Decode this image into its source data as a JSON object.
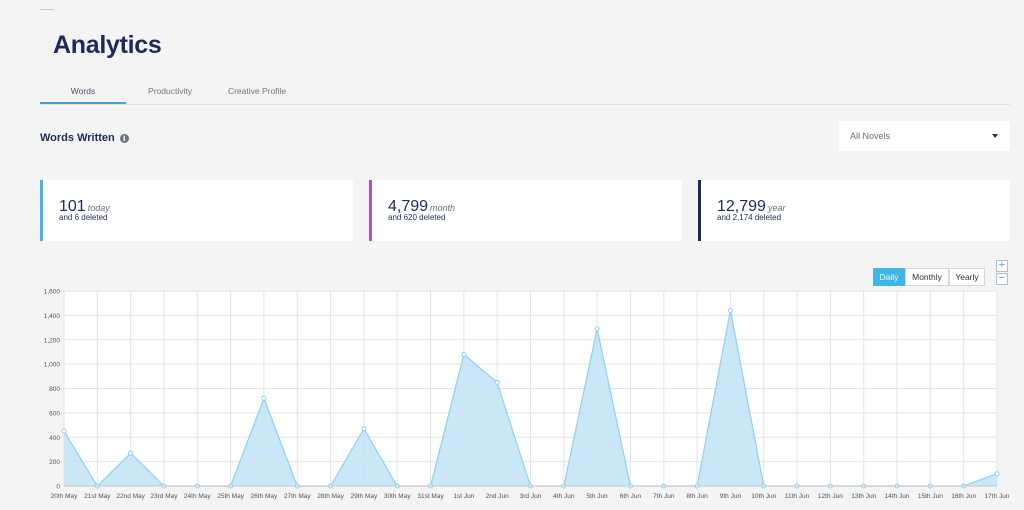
{
  "header": {
    "title": "Analytics"
  },
  "tabs": [
    {
      "label": "Words",
      "active": true
    },
    {
      "label": "Productivity",
      "active": false
    },
    {
      "label": "Creative Profile",
      "active": false
    }
  ],
  "section": {
    "title": "Words Written",
    "info_icon": "info-icon"
  },
  "novel_select": {
    "value": "All Novels"
  },
  "cards": [
    {
      "value": "101",
      "unit": "today",
      "deleted": "and 6 deleted",
      "accent": "#3fb6e8"
    },
    {
      "value": "4,799",
      "unit": "month",
      "deleted": "and 620 deleted",
      "accent": "#a855c8"
    },
    {
      "value": "12,799",
      "unit": "year",
      "deleted": "and 2,174 deleted",
      "accent": "#1e2a5a"
    }
  ],
  "zoom": {
    "in": "+",
    "out": "−"
  },
  "period_buttons": [
    {
      "label": "Daily",
      "active": true
    },
    {
      "label": "Monthly",
      "active": false
    },
    {
      "label": "Yearly",
      "active": false
    }
  ],
  "chart_data": {
    "type": "area",
    "categories": [
      "20th May",
      "21st May",
      "22nd May",
      "23rd May",
      "24th May",
      "25th May",
      "26th May",
      "27th May",
      "28th May",
      "29th May",
      "30th May",
      "31st May",
      "1st Jun",
      "2nd Jun",
      "3rd Jun",
      "4th Jun",
      "5th Jun",
      "6th Jun",
      "7th Jun",
      "8th Jun",
      "9th Jun",
      "10th Jun",
      "11th Jun",
      "12th Jun",
      "13th Jun",
      "14th Jun",
      "15th Jun",
      "16th Jun",
      "17th Jun"
    ],
    "values": [
      450,
      0,
      270,
      0,
      0,
      0,
      720,
      0,
      0,
      470,
      0,
      0,
      1080,
      850,
      0,
      0,
      1290,
      0,
      0,
      0,
      1440,
      0,
      0,
      0,
      0,
      0,
      0,
      0,
      101
    ],
    "yticks": [
      "0",
      "200",
      "400",
      "600",
      "800",
      "1,000",
      "1,200",
      "1,400",
      "1,600"
    ],
    "ylim": [
      0,
      1600
    ],
    "grid": true,
    "color": "#8fd0f0",
    "fill": "#bfe3f5"
  }
}
